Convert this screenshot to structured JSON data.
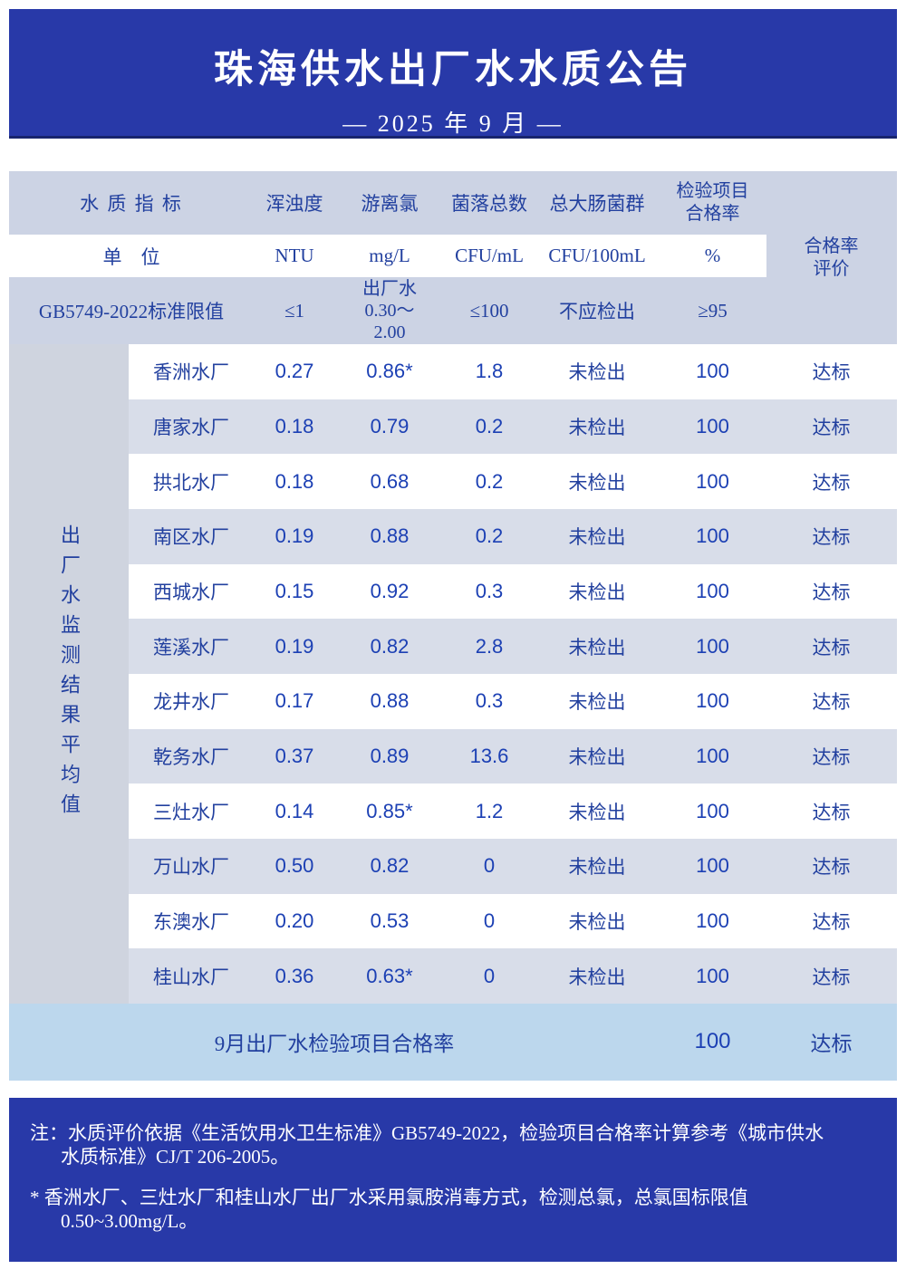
{
  "banner": {
    "title": "珠海供水出厂水水质公告",
    "subtitle": "— 2025 年 9 月 —"
  },
  "table": {
    "header": {
      "indicator_label": "水 质 指 标",
      "columns": [
        "浑浊度",
        "游离氯",
        "菌落总数",
        "总大肠菌群",
        "检验项目\n合格率"
      ],
      "unit_label": "单　位",
      "units": [
        "NTU",
        "mg/L",
        "CFU/mL",
        "CFU/100mL",
        "%"
      ],
      "evaluation_label": "合格率\n评价",
      "standard_label": "GB5749-2022标准限值",
      "standards": [
        "≤1",
        "出厂水\n0.30～\n2.00",
        "≤100",
        "不应检出",
        "≥95"
      ]
    },
    "row_group_label": "出厂水监测结果平均值",
    "rows": [
      {
        "c": [
          "香洲水厂",
          "0.27",
          "0.86*",
          "1.8",
          "未检出",
          "100",
          "达标"
        ]
      },
      {
        "c": [
          "唐家水厂",
          "0.18",
          "0.79",
          "0.2",
          "未检出",
          "100",
          "达标"
        ]
      },
      {
        "c": [
          "拱北水厂",
          "0.18",
          "0.68",
          "0.2",
          "未检出",
          "100",
          "达标"
        ]
      },
      {
        "c": [
          "南区水厂",
          "0.19",
          "0.88",
          "0.2",
          "未检出",
          "100",
          "达标"
        ]
      },
      {
        "c": [
          "西城水厂",
          "0.15",
          "0.92",
          "0.3",
          "未检出",
          "100",
          "达标"
        ]
      },
      {
        "c": [
          "莲溪水厂",
          "0.19",
          "0.82",
          "2.8",
          "未检出",
          "100",
          "达标"
        ]
      },
      {
        "c": [
          "龙井水厂",
          "0.17",
          "0.88",
          "0.3",
          "未检出",
          "100",
          "达标"
        ]
      },
      {
        "c": [
          "乾务水厂",
          "0.37",
          "0.89",
          "13.6",
          "未检出",
          "100",
          "达标"
        ]
      },
      {
        "c": [
          "三灶水厂",
          "0.14",
          "0.85*",
          "1.2",
          "未检出",
          "100",
          "达标"
        ]
      },
      {
        "c": [
          "万山水厂",
          "0.50",
          "0.82",
          "0",
          "未检出",
          "100",
          "达标"
        ]
      },
      {
        "c": [
          "东澳水厂",
          "0.20",
          "0.53",
          "0",
          "未检出",
          "100",
          "达标"
        ]
      },
      {
        "c": [
          "桂山水厂",
          "0.36",
          "0.63*",
          "0",
          "未检出",
          "100",
          "达标"
        ]
      }
    ],
    "summary": {
      "label": "9月出厂水检验项目合格率",
      "rate": "100",
      "evaluation": "达标"
    }
  },
  "footer": {
    "note1_line1": "注：水质评价依据《生活饮用水卫生标准》GB5749-2022，检验项目合格率计算参考《城市供水",
    "note1_line2": "水质标准》CJ/T 206-2005。",
    "note2_line1": "* 香洲水厂、三灶水厂和桂山水厂出厂水采用氯胺消毒方式，检测总氯，总氯国标限值",
    "note2_line2": "0.50~3.00mg/L。"
  },
  "colors": {
    "banner_bg": "#2839a8",
    "banner_rule": "#18246e",
    "header_band": "#ccd3e4",
    "stripe": "#d8dde9",
    "left_col": "#cfd4df",
    "summary_bg": "#bcd7ed",
    "text_blue": "#22409f",
    "value_blue": "#1c40b4"
  }
}
